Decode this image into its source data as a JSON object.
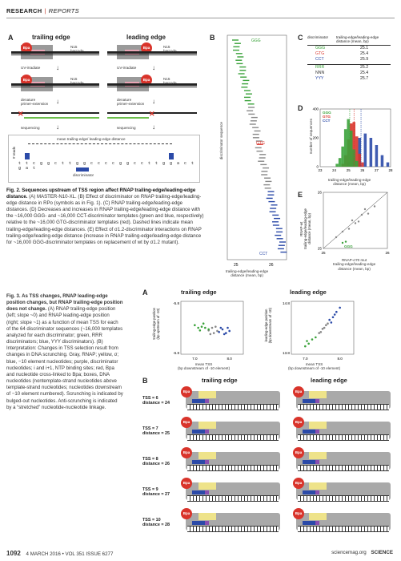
{
  "header": {
    "section": "RESEARCH",
    "subsection": "REPORTS"
  },
  "fig2": {
    "panelA": {
      "letter": "A",
      "left_title": "trailing edge",
      "right_title": "leading edge",
      "n15_barcode": "N15\nbarcode",
      "bpa": "Bpa",
      "uv": "UV-irradiate",
      "denature": "denature\nprimer-extension",
      "sequencing": "sequencing",
      "mean_label": "mean trailing-edge/ leading-edge distance",
      "discriminator": "discriminator",
      "reads_axis": "# reads",
      "seq_letters": "t t c g g c t t g g c c c c g g c c t t g g a c t g a t"
    },
    "panelB": {
      "letter": "B",
      "ylabel": "discriminator sequence",
      "xlabel": "trailing-edge/leading-edge\ndistance (mean, bp)",
      "label_top": "GGG",
      "label_mid": "GTG",
      "label_bot": "CCT",
      "ticks": [
        "25",
        "26"
      ]
    },
    "panelC": {
      "letter": "C",
      "col1": "discriminator",
      "col2": "trailing-edge/leading-edge\ndistance (mean, bp)",
      "rows": [
        {
          "seq": "GGG",
          "val": "25.1",
          "color": "#3aa23a"
        },
        {
          "seq": "GTG",
          "val": "25.4",
          "color": "#d9342b"
        },
        {
          "seq": "CCT",
          "val": "25.9",
          "color": "#2b4aa8"
        },
        {
          "seq": "RRR",
          "val": "25.2",
          "color": "#3aa23a"
        },
        {
          "seq": "NNN",
          "val": "25.4",
          "color": "#333333"
        },
        {
          "seq": "YYY",
          "val": "25.7",
          "color": "#2b4aa8"
        }
      ]
    },
    "panelD": {
      "letter": "D",
      "ylabel": "number of sequences",
      "xlabel": "trailing-edge/leading-edge\ndistance (mean, bp)",
      "legend": [
        "GGG",
        "GTG",
        "CCT"
      ],
      "yticks": [
        "0",
        "200",
        "400"
      ],
      "xticks": [
        "23",
        "24",
        "25",
        "26",
        "27",
        "28"
      ]
    },
    "panelE": {
      "letter": "E",
      "ylabel": "RNAP-wt\ntrailing-edge/leading-edge\ndistance (mean, bp)",
      "xlabel": "RNAP-σ70 mut\ntrailing-edge/leading-edge\ndistance (mean, bp)",
      "ticks": [
        "25",
        "26"
      ]
    },
    "caption_title": "Fig. 2. Sequences upstream of TSS region affect RNAP trailing-edge/leading-edge distance.",
    "caption_body": "(A) MASTER-N10-XL. (B) Effect of discriminator on RNAP trailing-edge/leading-edge distance in RPo (symbols as in Fig. 1). (C) RNAP trailing-edge/leading-edge distances. (D) Decreases and increases in RNAP trailing-edge/leading-edge distance with the ~16,000 GGG- and ~16,000 CCT-discriminator templates (green and blue, respectively) relative to the ~16,000 GTG-discriminator templates (red). Dashed lines indicate mean trailing-edge/leading-edge distances. (E) Effect of σ1.2-discriminator interactions on RNAP trailing-edge/leading-edge distance (increase in RNAP trailing-edge/leading-edge distance for ~16,000 GGG-discriminator templates on replacement of wt by σ1.2 mutant)."
  },
  "fig3": {
    "caption_title": "Fig. 3. As TSS changes, RNAP leading-edge position changes, but RNAP trailing-edge position does not change.",
    "caption_body": "(A) RNAP trailing-edge position (left; slope ~0) and RNAP leading-edge position (right; slope ~1) as a function of mean TSS for each of the 64 discriminator sequences (~16,000 templates analyzed for each discriminator; green, RRR discriminators; blue, YYY discriminators). (B) Interpretation: Changes in TSS selection result from changes in DNA scrunching. Gray, RNAP; yellow, σ; blue, −10 element nucleotides; purple, discriminator nucleotides; i and i+1, NTP binding sites; red, Bpa and nucleotide cross-linked to Bpa; boxes, DNA nucleotides (nontemplate-strand nucleotides above template-strand nucleotides; nucleotides downstream of −10 element numbered). Scrunching is indicated by bulged-out nucleotides. Anti-scrunching is indicated by a “stretched” nucleotide-nucleotide linkage.",
    "panelA": {
      "letter": "A",
      "left_title": "trailing edge",
      "right_title": "leading edge",
      "left_ylabel": "trailing-edge position\n(bp upstream of -10)",
      "right_ylabel": "leading-edge position\n(bp downstream of -10)",
      "xlabel": "mean TSS\n(bp downstream of -10 element)",
      "left_yticks": [
        "-5.8",
        "-6.8"
      ],
      "right_yticks": [
        "14.8",
        "13.8"
      ],
      "xticks": [
        "7.0",
        "8.0"
      ]
    },
    "panelB": {
      "letter": "B",
      "left_title": "trailing edge",
      "right_title": "leading edge",
      "bpa": "Bpa",
      "rows": [
        {
          "tss": "TSS = 6",
          "dist": "distance = 24"
        },
        {
          "tss": "TSS = 7",
          "dist": "distance = 25"
        },
        {
          "tss": "TSS = 8",
          "dist": "distance = 26"
        },
        {
          "tss": "TSS = 9",
          "dist": "distance = 27"
        },
        {
          "tss": "TSS = 10",
          "dist": "distance = 28"
        }
      ]
    }
  },
  "footer": {
    "page": "1092",
    "issue": "4 MARCH 2016 • VOL 351 ISSUE 6277",
    "site": "sciencemag.org",
    "journal": "SCIENCE"
  },
  "chart_data": [
    {
      "type": "bar",
      "title": "",
      "xlabel": "trailing-edge/leading-edge distance (mean, bp)",
      "ylabel": "number of sequences",
      "ylim": [
        0,
        400
      ],
      "xlim": [
        23,
        28
      ],
      "series": [
        {
          "name": "GGG",
          "color": "#3aa23a",
          "x": [
            24.2,
            24.4,
            24.6,
            24.8,
            25.0,
            25.2,
            25.4,
            25.6
          ],
          "values": [
            20,
            60,
            140,
            260,
            330,
            250,
            120,
            40
          ]
        },
        {
          "name": "GTG",
          "color": "#d9342b",
          "x": [
            24.6,
            24.8,
            25.0,
            25.2,
            25.4,
            25.6,
            25.8,
            26.0
          ],
          "values": [
            20,
            80,
            190,
            300,
            310,
            210,
            90,
            30
          ]
        },
        {
          "name": "CCT",
          "color": "#2b4aa8",
          "x": [
            25.0,
            25.4,
            25.8,
            26.2,
            26.6,
            27.0,
            27.4,
            27.8
          ],
          "values": [
            30,
            110,
            200,
            230,
            200,
            150,
            80,
            30
          ]
        }
      ]
    },
    {
      "type": "scatter",
      "title": "trailing edge",
      "xlabel": "mean TSS (bp downstream of -10 element)",
      "ylabel": "trailing-edge position (bp upstream of -10)",
      "xlim": [
        6.6,
        8.4
      ],
      "ylim": [
        -6.8,
        -5.8
      ],
      "series": [
        {
          "name": "RRR",
          "color": "#3aa23a",
          "points": [
            [
              7.0,
              -6.25
            ],
            [
              7.1,
              -6.3
            ],
            [
              7.2,
              -6.28
            ],
            [
              7.15,
              -6.35
            ],
            [
              7.3,
              -6.3
            ],
            [
              7.25,
              -6.22
            ],
            [
              7.4,
              -6.33
            ]
          ]
        },
        {
          "name": "YYY",
          "color": "#2b4aa8",
          "points": [
            [
              7.7,
              -6.38
            ],
            [
              7.8,
              -6.33
            ],
            [
              7.9,
              -6.4
            ],
            [
              7.75,
              -6.3
            ],
            [
              8.0,
              -6.36
            ],
            [
              7.85,
              -6.42
            ],
            [
              7.95,
              -6.3
            ]
          ]
        },
        {
          "name": "other",
          "color": "#888888",
          "points": [
            [
              7.4,
              -6.35
            ],
            [
              7.5,
              -6.3
            ],
            [
              7.55,
              -6.4
            ],
            [
              7.6,
              -6.28
            ],
            [
              7.45,
              -6.42
            ],
            [
              7.65,
              -6.36
            ]
          ]
        }
      ]
    },
    {
      "type": "scatter",
      "title": "leading edge",
      "xlabel": "mean TSS (bp downstream of -10 element)",
      "ylabel": "leading-edge position (bp downstream of -10)",
      "xlim": [
        6.6,
        8.4
      ],
      "ylim": [
        13.8,
        14.8
      ],
      "series": [
        {
          "name": "RRR",
          "color": "#3aa23a",
          "points": [
            [
              7.0,
              13.95
            ],
            [
              7.1,
              14.0
            ],
            [
              7.2,
              14.08
            ],
            [
              7.05,
              14.05
            ],
            [
              7.3,
              14.12
            ]
          ]
        },
        {
          "name": "YYY",
          "color": "#2b4aa8",
          "points": [
            [
              7.7,
              14.45
            ],
            [
              7.8,
              14.5
            ],
            [
              7.9,
              14.6
            ],
            [
              7.85,
              14.55
            ],
            [
              8.0,
              14.68
            ],
            [
              7.75,
              14.4
            ]
          ]
        },
        {
          "name": "other",
          "color": "#888888",
          "points": [
            [
              7.4,
              14.2
            ],
            [
              7.5,
              14.28
            ],
            [
              7.55,
              14.3
            ],
            [
              7.6,
              14.35
            ],
            [
              7.45,
              14.22
            ],
            [
              7.65,
              14.38
            ]
          ]
        }
      ]
    },
    {
      "type": "scatter",
      "title": "",
      "xlabel": "RNAP-σ70 mut trailing-edge/leading-edge distance (mean, bp)",
      "ylabel": "RNAP-wt trailing-edge/leading-edge distance (mean, bp)",
      "xlim": [
        25,
        26
      ],
      "ylim": [
        25,
        26
      ],
      "series": [
        {
          "name": "GGG",
          "color": "#3aa23a",
          "points": [
            [
              25.3,
              25.1
            ],
            [
              25.35,
              25.12
            ]
          ]
        },
        {
          "name": "all",
          "color": "#888888",
          "points": [
            [
              25.2,
              25.2
            ],
            [
              25.3,
              25.3
            ],
            [
              25.4,
              25.35
            ],
            [
              25.5,
              25.45
            ],
            [
              25.6,
              25.6
            ],
            [
              25.7,
              25.62
            ],
            [
              25.8,
              25.75
            ],
            [
              25.45,
              25.5
            ],
            [
              25.55,
              25.48
            ],
            [
              25.65,
              25.7
            ]
          ]
        }
      ]
    }
  ]
}
